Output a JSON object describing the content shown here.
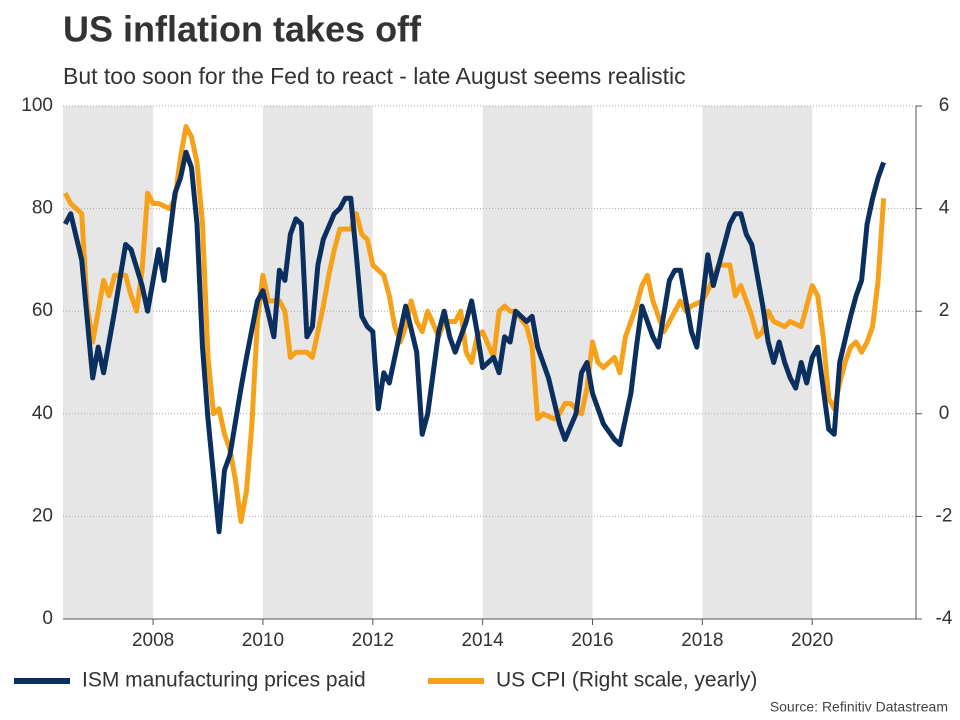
{
  "chart_data": {
    "type": "line",
    "title": "US inflation takes off",
    "subtitle": "But too soon for the Fed to react - late August seems realistic",
    "source": "Source: Refinitiv Datastream",
    "xlim": [
      2006.36,
      2021.89
    ],
    "xticks": [
      2008,
      2010,
      2012,
      2014,
      2016,
      2018,
      2020
    ],
    "ylim": [
      0,
      100
    ],
    "yticks": [
      0,
      20,
      40,
      60,
      80,
      100
    ],
    "y2lim": [
      -4,
      6
    ],
    "y2ticks": [
      -4,
      -2,
      0,
      2,
      4,
      6
    ],
    "grid": true,
    "series": [
      {
        "name": "ISM manufacturing prices paid",
        "color": "#0b3060",
        "x": [
          2006.4,
          2006.5,
          2006.7,
          2006.9,
          2007.0,
          2007.1,
          2007.3,
          2007.5,
          2007.6,
          2007.8,
          2007.9,
          2008.1,
          2008.2,
          2008.4,
          2008.5,
          2008.6,
          2008.7,
          2008.8,
          2008.9,
          2009.0,
          2009.1,
          2009.2,
          2009.3,
          2009.4,
          2009.6,
          2009.7,
          2009.9,
          2010.0,
          2010.2,
          2010.3,
          2010.4,
          2010.5,
          2010.6,
          2010.7,
          2010.8,
          2010.9,
          2011.0,
          2011.1,
          2011.3,
          2011.4,
          2011.5,
          2011.6,
          2011.7,
          2011.8,
          2011.9,
          2012.0,
          2012.1,
          2012.2,
          2012.3,
          2012.5,
          2012.6,
          2012.8,
          2012.9,
          2013.0,
          2013.2,
          2013.3,
          2013.4,
          2013.5,
          2013.7,
          2013.8,
          2013.9,
          2014.0,
          2014.2,
          2014.3,
          2014.4,
          2014.5,
          2014.6,
          2014.8,
          2014.9,
          2015.0,
          2015.2,
          2015.4,
          2015.5,
          2015.7,
          2015.8,
          2015.9,
          2016.0,
          2016.2,
          2016.4,
          2016.5,
          2016.7,
          2016.8,
          2016.9,
          2017.1,
          2017.2,
          2017.4,
          2017.5,
          2017.6,
          2017.8,
          2017.9,
          2018.0,
          2018.1,
          2018.2,
          2018.4,
          2018.5,
          2018.6,
          2018.7,
          2018.8,
          2018.9,
          2019.1,
          2019.2,
          2019.3,
          2019.4,
          2019.5,
          2019.6,
          2019.7,
          2019.8,
          2019.9,
          2020.0,
          2020.1,
          2020.3,
          2020.4,
          2020.5,
          2020.7,
          2020.8,
          2020.9,
          2021.0,
          2021.1,
          2021.2,
          2021.3
        ],
        "values": [
          77,
          79,
          70,
          47,
          53,
          48,
          60,
          73,
          72,
          65,
          60,
          72,
          66,
          83,
          86,
          91,
          88,
          77,
          53,
          39,
          28,
          17,
          29,
          32,
          45,
          51,
          62,
          64,
          55,
          68,
          66,
          75,
          78,
          77,
          55,
          57,
          69,
          74,
          79,
          80,
          82,
          82,
          71,
          59,
          57,
          56,
          41,
          48,
          46,
          56,
          61,
          52,
          36,
          40,
          56,
          60,
          55,
          52,
          58,
          62,
          56,
          49,
          51,
          48,
          55,
          54,
          60,
          58,
          59,
          53,
          47,
          38,
          35,
          40,
          48,
          50,
          44,
          38,
          35,
          34,
          44,
          53,
          61,
          55,
          53,
          66,
          68,
          68,
          56,
          53,
          62,
          71,
          65,
          73,
          77,
          79,
          79,
          75,
          73,
          61,
          54,
          50,
          54,
          50,
          47,
          45,
          50,
          46,
          51,
          53,
          37,
          36,
          50,
          59,
          63,
          66,
          77,
          82,
          86,
          89
        ]
      },
      {
        "name": "US CPI (Right scale, yearly)",
        "color": "#f7a11a",
        "axis": "y2",
        "x": [
          2006.4,
          2006.5,
          2006.7,
          2006.8,
          2006.9,
          2007.0,
          2007.1,
          2007.2,
          2007.3,
          2007.5,
          2007.6,
          2007.7,
          2007.8,
          2007.9,
          2008.0,
          2008.1,
          2008.3,
          2008.4,
          2008.5,
          2008.6,
          2008.7,
          2008.8,
          2008.9,
          2009.0,
          2009.1,
          2009.2,
          2009.3,
          2009.4,
          2009.5,
          2009.6,
          2009.7,
          2009.8,
          2009.9,
          2010.0,
          2010.1,
          2010.3,
          2010.4,
          2010.5,
          2010.6,
          2010.8,
          2010.9,
          2011.0,
          2011.1,
          2011.2,
          2011.3,
          2011.4,
          2011.6,
          2011.7,
          2011.8,
          2011.9,
          2012.0,
          2012.2,
          2012.3,
          2012.4,
          2012.5,
          2012.6,
          2012.7,
          2012.8,
          2012.9,
          2013.0,
          2013.2,
          2013.3,
          2013.5,
          2013.6,
          2013.7,
          2013.8,
          2013.9,
          2014.0,
          2014.2,
          2014.3,
          2014.4,
          2014.5,
          2014.6,
          2014.8,
          2014.9,
          2015.0,
          2015.1,
          2015.3,
          2015.4,
          2015.5,
          2015.6,
          2015.8,
          2015.9,
          2016.0,
          2016.1,
          2016.2,
          2016.4,
          2016.5,
          2016.6,
          2016.8,
          2016.9,
          2017.0,
          2017.1,
          2017.2,
          2017.3,
          2017.5,
          2017.6,
          2017.7,
          2017.8,
          2018.0,
          2018.1,
          2018.3,
          2018.5,
          2018.6,
          2018.7,
          2018.8,
          2018.9,
          2019.0,
          2019.1,
          2019.2,
          2019.3,
          2019.5,
          2019.6,
          2019.8,
          2019.9,
          2020.0,
          2020.1,
          2020.2,
          2020.3,
          2020.4,
          2020.5,
          2020.6,
          2020.7,
          2020.8,
          2020.9,
          2021.0,
          2021.1,
          2021.2,
          2021.3
        ],
        "values": [
          4.3,
          4.1,
          3.9,
          2.1,
          1.4,
          2.0,
          2.6,
          2.3,
          2.7,
          2.7,
          2.3,
          2.0,
          2.8,
          4.3,
          4.1,
          4.1,
          4.0,
          4.2,
          5.0,
          5.6,
          5.4,
          4.9,
          3.7,
          1.1,
          0.0,
          0.1,
          -0.4,
          -0.7,
          -1.3,
          -2.1,
          -1.5,
          -0.2,
          1.8,
          2.7,
          2.2,
          2.2,
          2.0,
          1.1,
          1.2,
          1.2,
          1.1,
          1.6,
          2.1,
          2.7,
          3.2,
          3.6,
          3.6,
          3.9,
          3.5,
          3.4,
          2.9,
          2.7,
          2.3,
          1.7,
          1.4,
          1.7,
          2.2,
          1.8,
          1.6,
          2.0,
          1.5,
          1.8,
          1.8,
          2.0,
          1.2,
          1.0,
          1.5,
          1.6,
          1.1,
          2.0,
          2.1,
          2.0,
          2.0,
          1.7,
          1.3,
          -0.1,
          0.0,
          -0.1,
          0.0,
          0.2,
          0.2,
          0.0,
          0.5,
          1.4,
          1.0,
          0.9,
          1.1,
          0.8,
          1.5,
          2.1,
          2.5,
          2.7,
          2.2,
          1.9,
          1.6,
          2.0,
          2.2,
          2.0,
          2.1,
          2.2,
          2.4,
          2.9,
          2.9,
          2.3,
          2.5,
          2.2,
          1.9,
          1.5,
          1.6,
          2.0,
          1.8,
          1.7,
          1.8,
          1.7,
          2.1,
          2.5,
          2.3,
          1.5,
          0.3,
          0.1,
          0.6,
          1.0,
          1.3,
          1.4,
          1.2,
          1.4,
          1.7,
          2.6,
          4.2
        ]
      }
    ]
  }
}
